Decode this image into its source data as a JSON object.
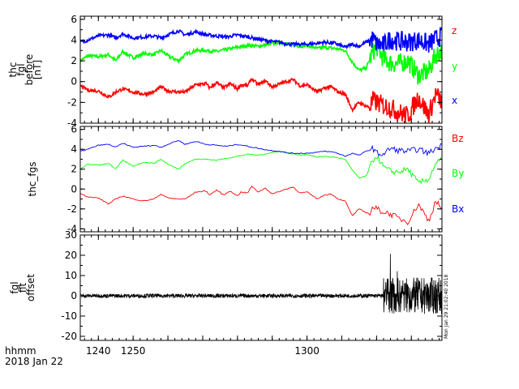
{
  "chart_data": [
    {
      "type": "line",
      "ylabel_lines": [
        "thc",
        "fgl",
        "before",
        "[nT]"
      ],
      "ylim": [
        -4,
        6.3
      ],
      "yticks": [
        6,
        4,
        2,
        0,
        -2,
        -4
      ],
      "series": [
        {
          "name": "z",
          "color": "#ff0000",
          "x": [
            1234.8,
            1237,
            1240,
            1243,
            1245,
            1247,
            1250,
            1253,
            1256,
            1258,
            1260,
            1263,
            1265,
            1268,
            1271,
            1272,
            1274,
            1276,
            1278,
            1280,
            1281,
            1283,
            1284,
            1286,
            1288,
            1290,
            1294,
            1296,
            1298,
            1300,
            1303,
            1305,
            1307,
            1309,
            1311,
            1313,
            1315,
            1316,
            1318,
            1319,
            1320,
            1322,
            1324,
            1326,
            1329,
            1332,
            1335,
            1337,
            1338.8
          ],
          "values": [
            -0.4,
            -0.8,
            -0.9,
            -1.5,
            -1.0,
            -0.7,
            -1.0,
            -1.2,
            -1.0,
            -0.5,
            -0.9,
            -1.0,
            -1.0,
            -0.3,
            -0.2,
            -0.6,
            -0.1,
            -0.6,
            -0.2,
            -0.7,
            -0.3,
            -0.4,
            0.3,
            -0.3,
            0.1,
            -0.5,
            0.0,
            0.2,
            -0.4,
            -0.3,
            -1.0,
            -0.6,
            -0.5,
            -1.0,
            -1.2,
            -2.7,
            -2.0,
            -2.2,
            -2.5,
            -1.8,
            -2.0,
            -2.3,
            -2.5,
            -2.9,
            -3.3,
            -1.5,
            -3.2,
            -1.2,
            -2.0
          ]
        },
        {
          "name": "y",
          "color": "#00ff00",
          "x": [
            1234.8,
            1237,
            1240,
            1243,
            1245,
            1247,
            1250,
            1253,
            1256,
            1258,
            1260,
            1263,
            1265,
            1268,
            1271,
            1274,
            1277,
            1280,
            1283,
            1286,
            1289,
            1292,
            1295,
            1298,
            1300,
            1303,
            1305,
            1308,
            1311,
            1313,
            1315,
            1317,
            1319,
            1320,
            1322,
            1324,
            1326,
            1329,
            1332,
            1335,
            1337,
            1338.8
          ],
          "values": [
            2.0,
            2.5,
            2.4,
            2.6,
            2.0,
            2.9,
            2.3,
            2.7,
            2.6,
            3.0,
            2.5,
            2.0,
            2.6,
            3.0,
            3.0,
            2.9,
            3.1,
            3.3,
            3.5,
            3.4,
            3.6,
            3.8,
            3.6,
            3.4,
            3.5,
            3.2,
            3.3,
            3.2,
            3.0,
            1.9,
            1.1,
            1.3,
            2.9,
            3.4,
            2.2,
            1.8,
            1.7,
            2.0,
            0.6,
            1.0,
            2.6,
            3.0
          ]
        },
        {
          "name": "x",
          "color": "#0000ff",
          "x": [
            1234.8,
            1237,
            1240,
            1243,
            1245,
            1247,
            1250,
            1253,
            1256,
            1258,
            1260,
            1263,
            1265,
            1268,
            1271,
            1274,
            1277,
            1280,
            1283,
            1286,
            1289,
            1292,
            1295,
            1298,
            1300,
            1303,
            1305,
            1308,
            1311,
            1313,
            1315,
            1317,
            1319,
            1320,
            1322,
            1324,
            1326,
            1329,
            1332,
            1335,
            1337,
            1338.8
          ],
          "values": [
            3.8,
            4.0,
            4.4,
            4.5,
            4.2,
            4.6,
            4.2,
            4.3,
            4.4,
            4.2,
            4.5,
            4.9,
            4.5,
            4.8,
            4.5,
            4.4,
            4.3,
            4.5,
            4.3,
            4.1,
            3.9,
            3.8,
            3.6,
            3.6,
            3.6,
            3.7,
            3.8,
            3.7,
            3.3,
            3.6,
            3.4,
            3.8,
            4.1,
            3.6,
            3.5,
            4.1,
            3.9,
            3.8,
            4.0,
            3.6,
            4.1,
            4.4
          ]
        }
      ],
      "legend": [
        "z",
        "y",
        "x"
      ],
      "legend_position": "right"
    },
    {
      "type": "line",
      "ylabel_lines": [
        "thc_fgs"
      ],
      "ylim": [
        -4.3,
        6.3
      ],
      "yticks": [
        6,
        4,
        2,
        0,
        -2,
        -4
      ],
      "series": [
        {
          "name": "Bz",
          "color": "#ff0000",
          "same_as_panel": 1
        },
        {
          "name": "By",
          "color": "#00ff00",
          "same_as_panel": 1
        },
        {
          "name": "Bx",
          "color": "#0000ff",
          "same_as_panel": 1
        }
      ],
      "legend": [
        "Bz",
        "By",
        "Bx"
      ],
      "legend_position": "right"
    },
    {
      "type": "line",
      "ylabel_lines": [
        "fgl",
        "fit",
        "offset"
      ],
      "ylim": [
        -22,
        30
      ],
      "yticks": [
        30,
        20,
        10,
        0,
        -10,
        -20
      ],
      "noise_level": 1.0,
      "burst_start": 1322,
      "burst_level": 9.0,
      "series": [
        {
          "name": "offset",
          "color": "#000000"
        }
      ]
    }
  ],
  "shared_x_axis": {
    "xlim": [
      1234.8,
      1338.8
    ],
    "major_ticks": [
      1240,
      1250,
      1260,
      1270,
      1280,
      1290,
      1300,
      1310,
      1320,
      1330
    ],
    "tick_labels": [
      "1240",
      "1250",
      "",
      "",
      "",
      "",
      "1300",
      "",
      "",
      ""
    ],
    "label_lines": [
      "hhmm",
      "2018 Jan 22"
    ]
  },
  "watermark": "Mon Jan 29 21:02:40 2018"
}
